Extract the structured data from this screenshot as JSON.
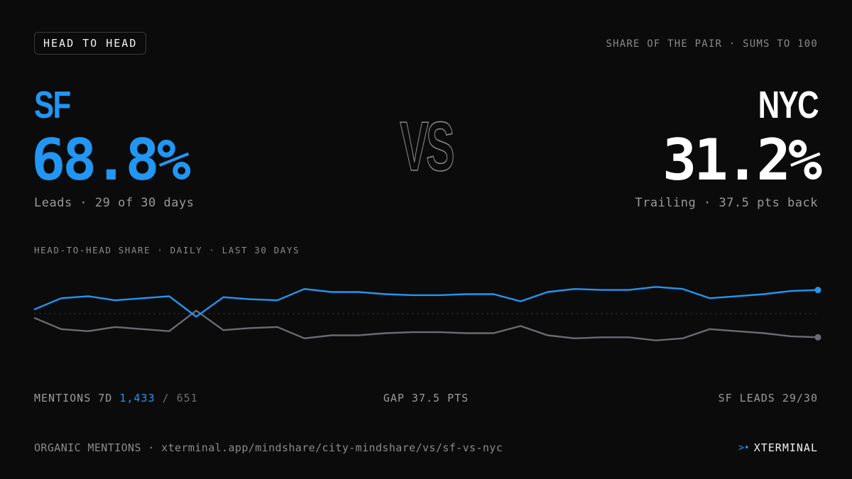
{
  "header": {
    "badge": "HEAD TO HEAD",
    "note": "SHARE OF THE PAIR · SUMS TO 100"
  },
  "left": {
    "city": "SF",
    "share": "68.8%",
    "caption": "Leads · 29 of 30 days"
  },
  "right": {
    "city": "NYC",
    "share": "31.2%",
    "caption": "Trailing · 37.5 pts back"
  },
  "versus": "VS",
  "colors": {
    "sf": "#2196f3",
    "nyc": "#6b6b73",
    "background": "#0b0b0b"
  },
  "chart_data": {
    "type": "line",
    "title": "HEAD-TO-HEAD SHARE · DAILY · LAST 30 DAYS",
    "xlabel": "",
    "ylabel": "",
    "x": [
      1,
      2,
      3,
      4,
      5,
      6,
      7,
      8,
      9,
      10,
      11,
      12,
      13,
      14,
      15,
      16,
      17,
      18,
      19,
      20,
      21,
      22,
      23,
      24,
      25,
      26,
      27,
      28,
      29,
      30
    ],
    "series": [
      {
        "name": "SF",
        "color": "#2196f3",
        "values": [
          52.0,
          57.5,
          58.5,
          56.5,
          57.5,
          58.5,
          48.5,
          58.0,
          57.0,
          56.5,
          62.0,
          60.5,
          60.5,
          59.5,
          59.0,
          59.0,
          59.5,
          59.5,
          56.0,
          60.5,
          62.0,
          61.5,
          61.5,
          63.0,
          62.0,
          57.5,
          58.5,
          59.5,
          61.0,
          61.5
        ]
      },
      {
        "name": "NYC",
        "color": "#6b6b73",
        "values": [
          48.0,
          42.5,
          41.5,
          43.5,
          42.5,
          41.5,
          51.5,
          42.0,
          43.0,
          43.5,
          38.0,
          39.5,
          39.5,
          40.5,
          41.0,
          41.0,
          40.5,
          40.5,
          44.0,
          39.5,
          38.0,
          38.5,
          38.5,
          37.0,
          38.0,
          42.5,
          41.5,
          40.5,
          39.0,
          38.5
        ]
      }
    ],
    "midline": 50,
    "ylim": [
      30,
      70
    ],
    "grid": false,
    "legend": "none"
  },
  "stats": {
    "mentions_label": "MENTIONS 7D",
    "mentions_sf": "1,433",
    "mentions_sep": "/",
    "mentions_nyc": "651",
    "gap": "GAP 37.5 PTS",
    "leads": "SF LEADS 29/30"
  },
  "footer": {
    "source": "ORGANIC MENTIONS · xterminal.app/mindshare/city-mindshare/vs/sf-vs-nyc",
    "brand_mark": ">•",
    "brand": "XTERMINAL",
    "brand_icon": "prompt-arrow-icon"
  }
}
